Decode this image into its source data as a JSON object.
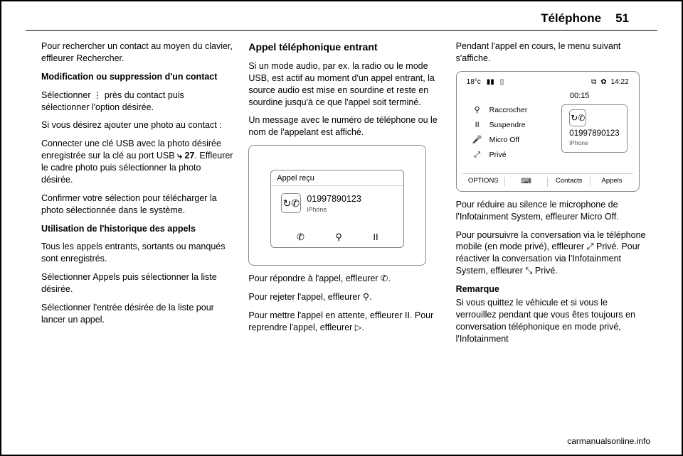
{
  "header": {
    "title": "Téléphone",
    "page_number": "51"
  },
  "col1": {
    "p1": "Pour rechercher un contact au moyen du clavier, effleurer Rechercher.",
    "sub1": "Modification ou suppression d'un contact",
    "p2": "Sélectionner ⋮ près du contact puis sélectionner l'option désirée.",
    "p3": "Si vous désirez ajouter une photo au contact :",
    "p4a": "Connecter une clé USB avec la photo désirée enregistrée sur la clé au port USB ",
    "p4link": "⤷ 27",
    "p4b": ". Effleurer le cadre photo puis sélectionner la photo désirée.",
    "p5": "Confirmer votre sélection pour télé­charger la photo sélectionnée dans le système.",
    "sub2": "Utilisation de l'historique des appels",
    "p6": "Tous les appels entrants, sortants ou manqués sont enregistrés.",
    "p7": "Sélectionner Appels puis sélection­ner la liste désirée.",
    "p8": "Sélectionner l'entrée désirée de la liste pour lancer un appel."
  },
  "col2": {
    "heading": "Appel téléphonique entrant",
    "p1": "Si un mode audio, par ex. la radio ou le mode USB, est actif au moment d'un appel entrant, la source audio est mise en sourdine et reste en sourdine jusqu'à ce que l'appel soit terminé.",
    "p2": "Un message avec le numéro de télé­phone ou le nom de l'appelant est affi­ché.",
    "p3": "Pour répondre à l'appel, effleurer ✆.",
    "p4": "Pour rejeter l'appel, effleurer ⚲.",
    "p5": "Pour mettre l'appel en attente, effleu­rer II. Pour reprendre l'appel, effleurer ▷."
  },
  "col3": {
    "p1": "Pendant l'appel en cours, le menu suivant s'affiche.",
    "p2": "Pour réduire au silence le micro­phone de l'Infotainment System, effleurer Micro Off.",
    "p3": "Pour poursuivre la conversation via le téléphone mobile (en mode privé), effleurer ⤢ Privé. Pour réactiver la conversation via l'Infotainment System, effleurer ⤡ Privé.",
    "remarque_title": "Remarque",
    "remarque_body": "Si vous quittez le véhicule et si vous le verrouillez pendant que vous êtes toujours en conversation téléphoni­que en mode privé, l'Infotainment"
  },
  "screen_incoming": {
    "popup_title": "Appel reçu",
    "phone_number": "01997890123",
    "source": "iPhone",
    "icon_name": "phone-incoming-icon",
    "answer_icon": "✆",
    "reject_icon": "⚲",
    "hold_icon": "II",
    "colors": {
      "border": "#888888",
      "text": "#000000",
      "muted": "#555555"
    }
  },
  "screen_incall": {
    "status": {
      "temp": "18°c",
      "signal_icon": "▮▮",
      "battery_icon": "▯",
      "tab_icon": "⧉",
      "gear_icon": "✿",
      "time": "14:22"
    },
    "timer": "00:15",
    "rows": [
      {
        "icon": "⚲",
        "label": "Raccrocher"
      },
      {
        "icon": "II",
        "label": "Suspendre"
      },
      {
        "icon": "🎤",
        "label": "Micro Off"
      },
      {
        "icon": "⤢",
        "label": "Privé"
      }
    ],
    "call": {
      "icon_name": "phone-active-icon",
      "number": "01997890123",
      "source": "iPhone"
    },
    "bottom": [
      {
        "label": "OPTIONS"
      },
      {
        "icon": "⌨",
        "label": ""
      },
      {
        "icon": "",
        "label": "Contacts"
      },
      {
        "icon": "",
        "label": "Appels"
      }
    ],
    "colors": {
      "border": "#888888",
      "divider": "#cccccc",
      "text": "#000000",
      "muted": "#555555"
    }
  },
  "footer": "carmanualsonline.info"
}
